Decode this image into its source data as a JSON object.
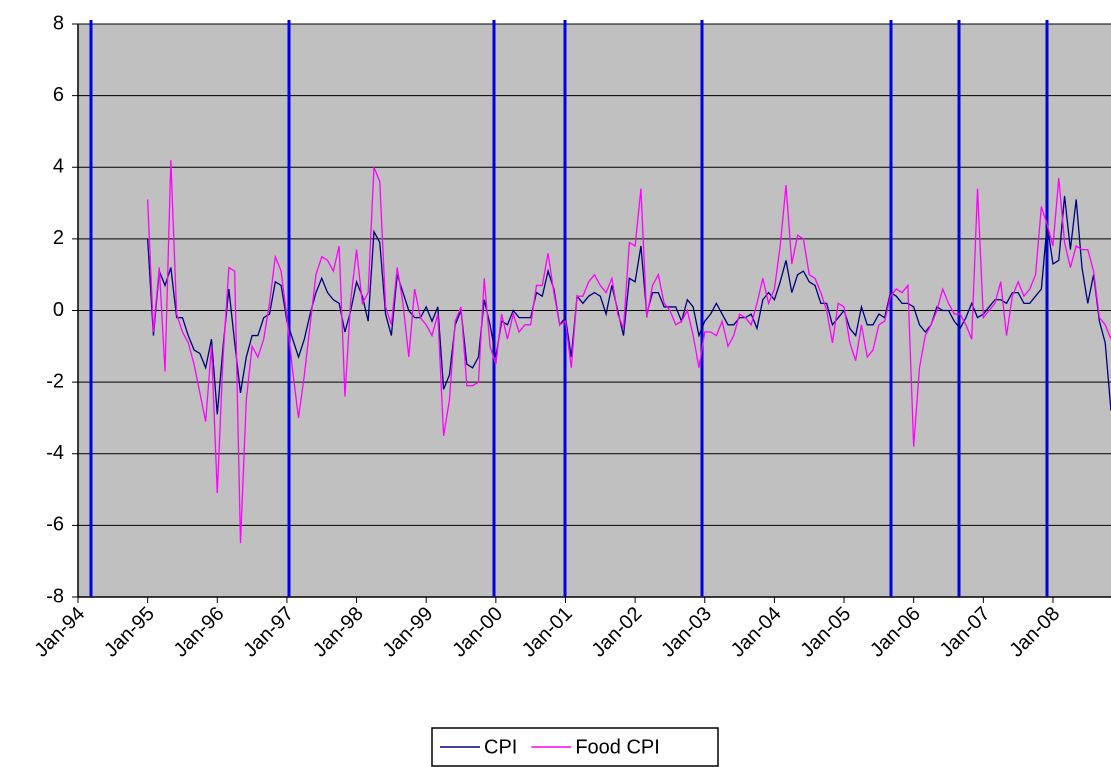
{
  "chart_data": {
    "type": "line",
    "categories": [
      "Jan-94",
      null,
      null,
      null,
      null,
      null,
      null,
      null,
      null,
      null,
      null,
      null,
      "Jan-95",
      null,
      null,
      null,
      null,
      null,
      null,
      null,
      null,
      null,
      null,
      null,
      "Jan-96",
      null,
      null,
      null,
      null,
      null,
      null,
      null,
      null,
      null,
      null,
      null,
      "Jan-97",
      null,
      null,
      null,
      null,
      null,
      null,
      null,
      null,
      null,
      null,
      null,
      "Jan-98",
      null,
      null,
      null,
      null,
      null,
      null,
      null,
      null,
      null,
      null,
      null,
      "Jan-99",
      null,
      null,
      null,
      null,
      null,
      null,
      null,
      null,
      null,
      null,
      null,
      "Jan-00",
      null,
      null,
      null,
      null,
      null,
      null,
      null,
      null,
      null,
      null,
      null,
      "Jan-01",
      null,
      null,
      null,
      null,
      null,
      null,
      null,
      null,
      null,
      null,
      null,
      "Jan-02",
      null,
      null,
      null,
      null,
      null,
      null,
      null,
      null,
      null,
      null,
      null,
      "Jan-03",
      null,
      null,
      null,
      null,
      null,
      null,
      null,
      null,
      null,
      null,
      null,
      "Jan-04",
      null,
      null,
      null,
      null,
      null,
      null,
      null,
      null,
      null,
      null,
      null,
      "Jan-05",
      null,
      null,
      null,
      null,
      null,
      null,
      null,
      null,
      null,
      null,
      null,
      "Jan-06",
      null,
      null,
      null,
      null,
      null,
      null,
      null,
      null,
      null,
      null,
      null,
      "Jan-07",
      null,
      null,
      null,
      null,
      null,
      null,
      null,
      null,
      null,
      null,
      null,
      "Jan-08",
      null,
      null,
      null,
      null,
      null,
      null,
      null,
      null,
      null,
      null
    ],
    "series": [
      {
        "name": "CPI",
        "color": "#000080",
        "values": [
          null,
          null,
          null,
          null,
          null,
          null,
          null,
          null,
          null,
          null,
          null,
          null,
          2.0,
          -0.7,
          1.1,
          0.7,
          1.2,
          -0.2,
          -0.2,
          -0.7,
          -1.1,
          -1.2,
          -1.6,
          -0.8,
          -2.9,
          -1.0,
          0.6,
          -0.9,
          -2.3,
          -1.3,
          -0.7,
          -0.7,
          -0.2,
          -0.1,
          0.8,
          0.7,
          -0.3,
          -0.8,
          -1.3,
          -0.8,
          -0.1,
          0.5,
          0.9,
          0.5,
          0.3,
          0.2,
          -0.6,
          0.0,
          0.8,
          0.4,
          -0.3,
          2.2,
          1.9,
          -0.1,
          -0.7,
          1.0,
          0.5,
          0.0,
          -0.2,
          -0.2,
          0.1,
          -0.3,
          0.1,
          -2.2,
          -1.8,
          -0.4,
          0.0,
          -1.5,
          -1.6,
          -1.3,
          0.3,
          -0.4,
          -1.3,
          -0.3,
          -0.4,
          0.0,
          -0.2,
          -0.2,
          -0.2,
          0.5,
          0.4,
          1.1,
          0.6,
          -0.4,
          -0.2,
          -1.3,
          0.4,
          0.2,
          0.4,
          0.5,
          0.4,
          -0.1,
          0.7,
          0.0,
          -0.7,
          0.9,
          0.8,
          1.8,
          -0.1,
          0.5,
          0.5,
          0.1,
          0.1,
          0.1,
          -0.3,
          0.3,
          0.1,
          -0.7,
          -0.3,
          -0.1,
          0.2,
          -0.1,
          -0.4,
          -0.4,
          -0.2,
          -0.2,
          -0.1,
          -0.5,
          0.3,
          0.5,
          0.3,
          0.8,
          1.4,
          0.5,
          1.0,
          1.1,
          0.8,
          0.7,
          0.2,
          0.2,
          -0.4,
          -0.2,
          0.0,
          -0.5,
          -0.7,
          0.1,
          -0.4,
          -0.4,
          -0.1,
          -0.2,
          0.5,
          0.4,
          0.2,
          0.2,
          0.1,
          -0.4,
          -0.6,
          -0.4,
          0.1,
          0.0,
          0.0,
          -0.3,
          -0.5,
          -0.2,
          0.2,
          -0.2,
          -0.1,
          0.1,
          0.3,
          0.3,
          0.2,
          0.5,
          0.5,
          0.2,
          0.2,
          0.4,
          0.6,
          2.4,
          1.3,
          1.4,
          3.2,
          1.7,
          3.1,
          1.2,
          0.2,
          1.0,
          -0.3,
          -0.9,
          -2.8
        ]
      },
      {
        "name": "Food CPI",
        "color": "#ff00ff",
        "values": [
          null,
          null,
          null,
          null,
          null,
          null,
          null,
          null,
          null,
          null,
          null,
          null,
          3.1,
          -0.6,
          1.2,
          -1.7,
          4.2,
          -0.1,
          -0.6,
          -0.9,
          -1.5,
          -2.3,
          -3.1,
          -1.0,
          -5.1,
          -1.3,
          1.2,
          1.1,
          -6.5,
          -2.5,
          -1.0,
          -1.3,
          -0.8,
          0.2,
          1.5,
          1.1,
          -0.2,
          -1.7,
          -3.0,
          -1.8,
          -0.4,
          1.0,
          1.5,
          1.4,
          1.1,
          1.8,
          -2.4,
          0.3,
          1.7,
          0.2,
          0.5,
          4.0,
          3.6,
          0.1,
          -0.4,
          1.2,
          0.2,
          -1.3,
          0.6,
          -0.2,
          -0.4,
          -0.7,
          -0.1,
          -3.5,
          -2.5,
          -0.3,
          0.1,
          -2.1,
          -2.1,
          -2.0,
          0.9,
          -1.0,
          -1.5,
          -0.1,
          -0.8,
          -0.1,
          -0.6,
          -0.4,
          -0.4,
          0.7,
          0.7,
          1.6,
          0.5,
          -0.4,
          -0.3,
          -1.6,
          0.4,
          0.4,
          0.8,
          1.0,
          0.7,
          0.5,
          0.9,
          -0.1,
          -0.5,
          1.9,
          1.8,
          3.4,
          -0.2,
          0.7,
          1.0,
          0.2,
          0.0,
          -0.4,
          -0.3,
          0.0,
          -0.7,
          -1.6,
          -0.6,
          -0.6,
          -0.7,
          -0.3,
          -1.0,
          -0.7,
          -0.1,
          -0.2,
          -0.4,
          0.2,
          0.9,
          0.2,
          0.6,
          1.8,
          3.5,
          1.3,
          2.1,
          2.0,
          1.0,
          0.9,
          0.5,
          0.0,
          -0.9,
          0.2,
          0.1,
          -0.9,
          -1.4,
          -0.4,
          -1.3,
          -1.1,
          -0.4,
          -0.3,
          0.4,
          0.6,
          0.5,
          0.7,
          -3.8,
          -1.6,
          -0.7,
          -0.4,
          0.0,
          0.6,
          0.2,
          -0.1,
          -0.1,
          -0.4,
          -0.8,
          3.4,
          -0.2,
          0.0,
          0.2,
          0.8,
          -0.7,
          0.4,
          0.8,
          0.4,
          0.6,
          1.0,
          2.9,
          2.4,
          1.8,
          3.7,
          1.9,
          1.2,
          1.8,
          1.7,
          1.7,
          1.1,
          -0.2,
          -0.4,
          -0.8
        ]
      }
    ],
    "ylim": [
      -8,
      8
    ],
    "yticks": [
      -8,
      -6,
      -4,
      -2,
      0,
      2,
      4,
      6,
      8
    ],
    "grid": true,
    "legend": "bottom"
  }
}
